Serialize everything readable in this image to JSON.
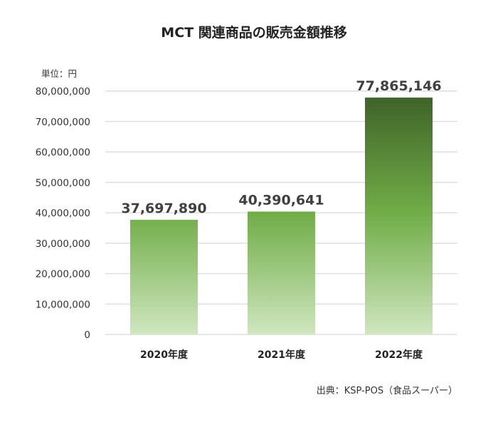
{
  "chart_data": {
    "type": "bar",
    "title": "MCT 関連商品の販売金額推移",
    "unit_label": "単位：円",
    "source": "出典：KSP-POS（食品スーパー）",
    "categories": [
      "2020年度",
      "2021年度",
      "2022年度"
    ],
    "values": [
      37697890,
      40390641,
      77865146
    ],
    "data_labels": [
      "37,697,890",
      "40,390,641",
      "77,865,146"
    ],
    "ylim": [
      0,
      80000000
    ],
    "yticks": [
      0,
      10000000,
      20000000,
      30000000,
      40000000,
      50000000,
      60000000,
      70000000,
      80000000
    ],
    "ytick_labels": [
      "0",
      "10,000,000",
      "20,000,000",
      "30,000,000",
      "40,000,000",
      "50,000,000",
      "60,000,000",
      "70,000,000",
      "80,000,000"
    ],
    "grid": true,
    "legend": "none",
    "colors": {
      "bar_top": "#3d5f27",
      "bar_mid": "#70ad47",
      "bar_bottom": "#cfe6bf",
      "grid": "#d9d9d9"
    }
  }
}
